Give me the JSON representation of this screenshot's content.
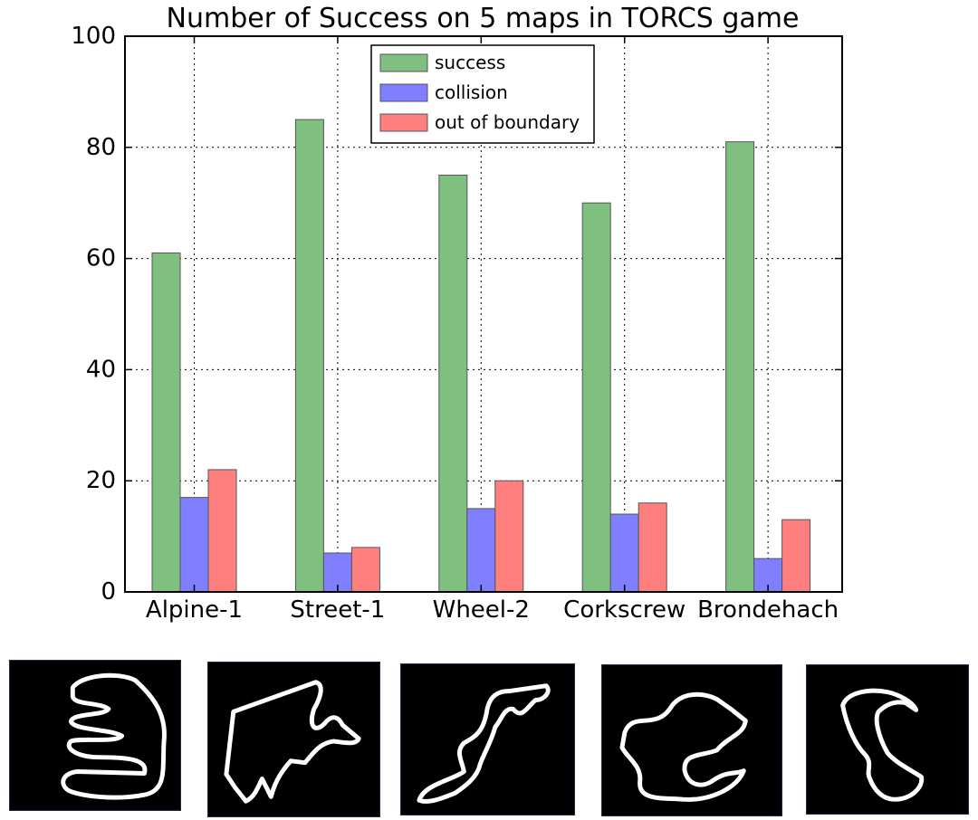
{
  "chart_data": {
    "type": "bar",
    "title": "Number of Success on 5 maps in TORCS game",
    "xlabel": "",
    "ylabel": "",
    "categories": [
      "Alpine-1",
      "Street-1",
      "Wheel-2",
      "Corkscrew",
      "Brondehach"
    ],
    "series": [
      {
        "name": "success",
        "color": "#7fbf7f",
        "values": [
          61,
          85,
          75,
          70,
          81
        ]
      },
      {
        "name": "collision",
        "color": "#7f7fff",
        "values": [
          17,
          7,
          15,
          14,
          6
        ]
      },
      {
        "name": "out of boundary",
        "color": "#ff7f7f",
        "values": [
          22,
          8,
          20,
          16,
          13
        ]
      }
    ],
    "ylim": [
      0,
      100
    ],
    "yticks": [
      0,
      20,
      40,
      60,
      80,
      100
    ],
    "grid": true,
    "legend_position": "top-center"
  },
  "track_maps": [
    {
      "icon": "alpine-1-track-map-icon"
    },
    {
      "icon": "street-1-track-map-icon"
    },
    {
      "icon": "wheel-2-track-map-icon"
    },
    {
      "icon": "corkscrew-track-map-icon"
    },
    {
      "icon": "brondehach-track-map-icon"
    }
  ]
}
